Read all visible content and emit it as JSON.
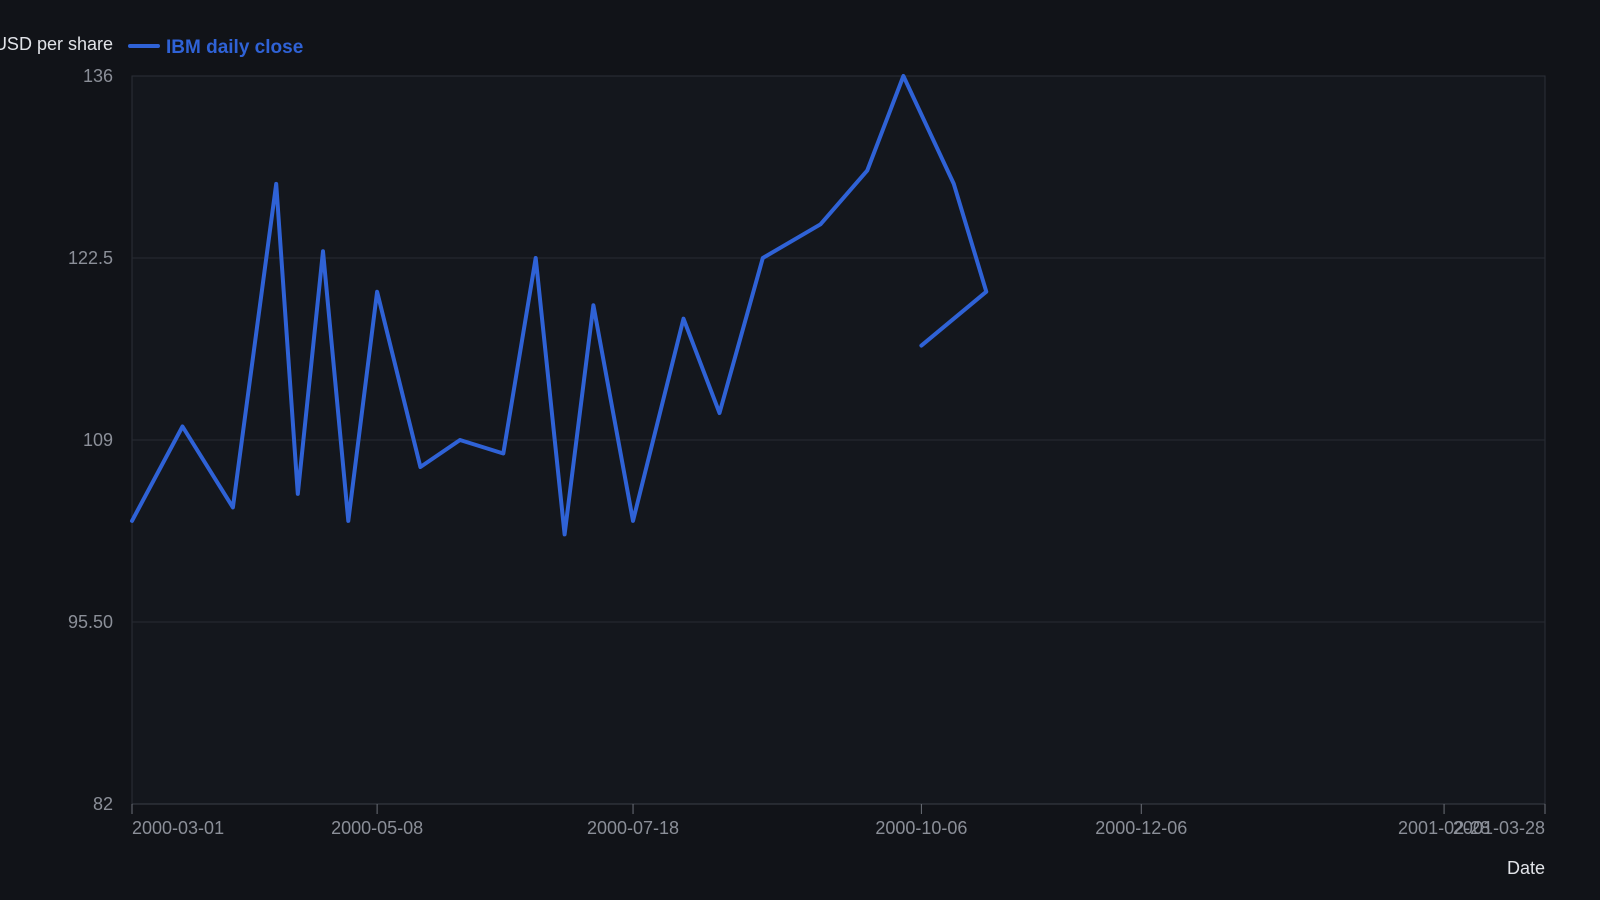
{
  "chart_data": {
    "type": "line",
    "title": "",
    "xlabel": "Date",
    "ylabel": "USD per share",
    "ylim": [
      82,
      136
    ],
    "yticks": [
      "82",
      "95.50",
      "109",
      "122.5",
      "136"
    ],
    "xlim": [
      "2000-03-01",
      "2001-03-28"
    ],
    "xticks": [
      "2000-03-01",
      "2000-05-08",
      "2000-07-18",
      "2000-10-06",
      "2000-12-06",
      "2001-02-28",
      "2001-03-28"
    ],
    "grid": true,
    "legend_position": "top-left",
    "series": [
      {
        "name": "IBM daily close",
        "color": "#2f62d6",
        "points": [
          [
            "2000-03-01",
            103
          ],
          [
            "2000-03-15",
            110
          ],
          [
            "2000-03-29",
            104
          ],
          [
            "2000-04-10",
            128
          ],
          [
            "2000-04-16",
            105
          ],
          [
            "2000-04-23",
            123
          ],
          [
            "2000-04-30",
            103
          ],
          [
            "2000-05-08",
            120
          ],
          [
            "2000-05-20",
            107
          ],
          [
            "2000-05-31",
            109
          ],
          [
            "2000-06-12",
            108
          ],
          [
            "2000-06-21",
            122.5
          ],
          [
            "2000-06-29",
            102
          ],
          [
            "2000-07-07",
            119
          ],
          [
            "2000-07-18",
            103
          ],
          [
            "2000-08-01",
            118
          ],
          [
            "2000-08-11",
            111
          ],
          [
            "2000-08-23",
            122.5
          ],
          [
            "2000-09-08",
            125
          ],
          [
            "2000-09-21",
            129
          ],
          [
            "2000-10-01",
            136
          ],
          [
            "2000-10-15",
            128
          ],
          [
            "2000-10-24",
            120
          ],
          [
            "2000-10-06",
            116
          ]
        ]
      }
    ]
  }
}
